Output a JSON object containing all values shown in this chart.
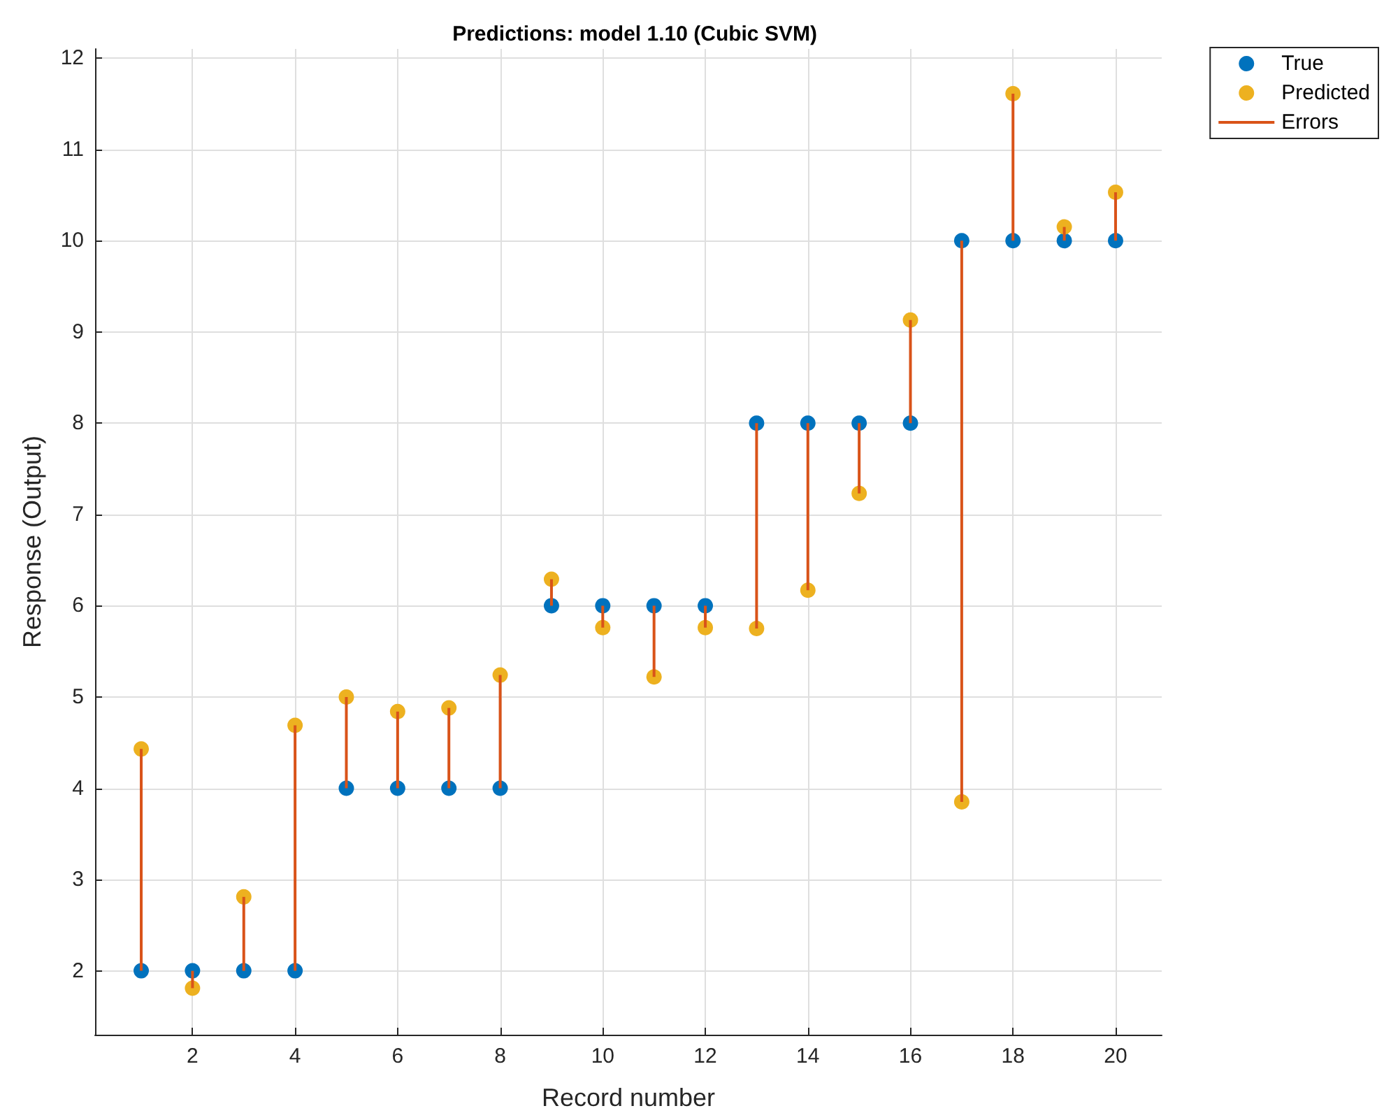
{
  "chart_data": {
    "type": "scatter",
    "title": "Predictions: model 1.10 (Cubic SVM)",
    "xlabel": "Record number",
    "ylabel": "Response (Output)",
    "x": [
      1,
      2,
      3,
      4,
      5,
      6,
      7,
      8,
      9,
      10,
      11,
      12,
      13,
      14,
      15,
      16,
      17,
      18,
      19,
      20
    ],
    "series": [
      {
        "name": "True",
        "color": "#0072bd",
        "values": [
          2,
          2,
          2,
          2,
          4,
          4,
          4,
          4,
          6,
          6,
          6,
          6,
          8,
          8,
          8,
          8,
          10,
          10,
          10,
          10
        ]
      },
      {
        "name": "Predicted",
        "color": "#edb120",
        "values": [
          4.43,
          1.81,
          2.81,
          4.69,
          5.0,
          4.84,
          4.88,
          5.24,
          6.29,
          5.76,
          5.22,
          5.76,
          5.75,
          6.17,
          7.23,
          9.13,
          3.85,
          11.61,
          10.15,
          10.53
        ]
      },
      {
        "name": "Errors",
        "type": "bar",
        "color": "#d95319",
        "base": [
          2,
          1.81,
          2,
          2,
          4,
          4,
          4,
          4,
          6,
          5.76,
          5.22,
          5.76,
          5.75,
          6.17,
          7.23,
          8,
          3.85,
          10,
          10,
          10
        ],
        "values": [
          2.43,
          0.19,
          0.81,
          2.69,
          1.0,
          0.84,
          0.88,
          1.24,
          0.29,
          0.24,
          0.78,
          0.24,
          2.25,
          1.83,
          0.77,
          1.13,
          6.15,
          1.61,
          0.15,
          0.53
        ]
      }
    ],
    "xlim": [
      0.1,
      20.9
    ],
    "xticks": [
      2,
      4,
      6,
      8,
      10,
      12,
      14,
      16,
      18,
      20
    ],
    "ylim": [
      1.3,
      12.1
    ],
    "yticks": [
      2,
      3,
      4,
      5,
      6,
      7,
      8,
      9,
      10,
      11,
      12
    ],
    "grid": true,
    "legend": "top right",
    "marker": "circle"
  }
}
